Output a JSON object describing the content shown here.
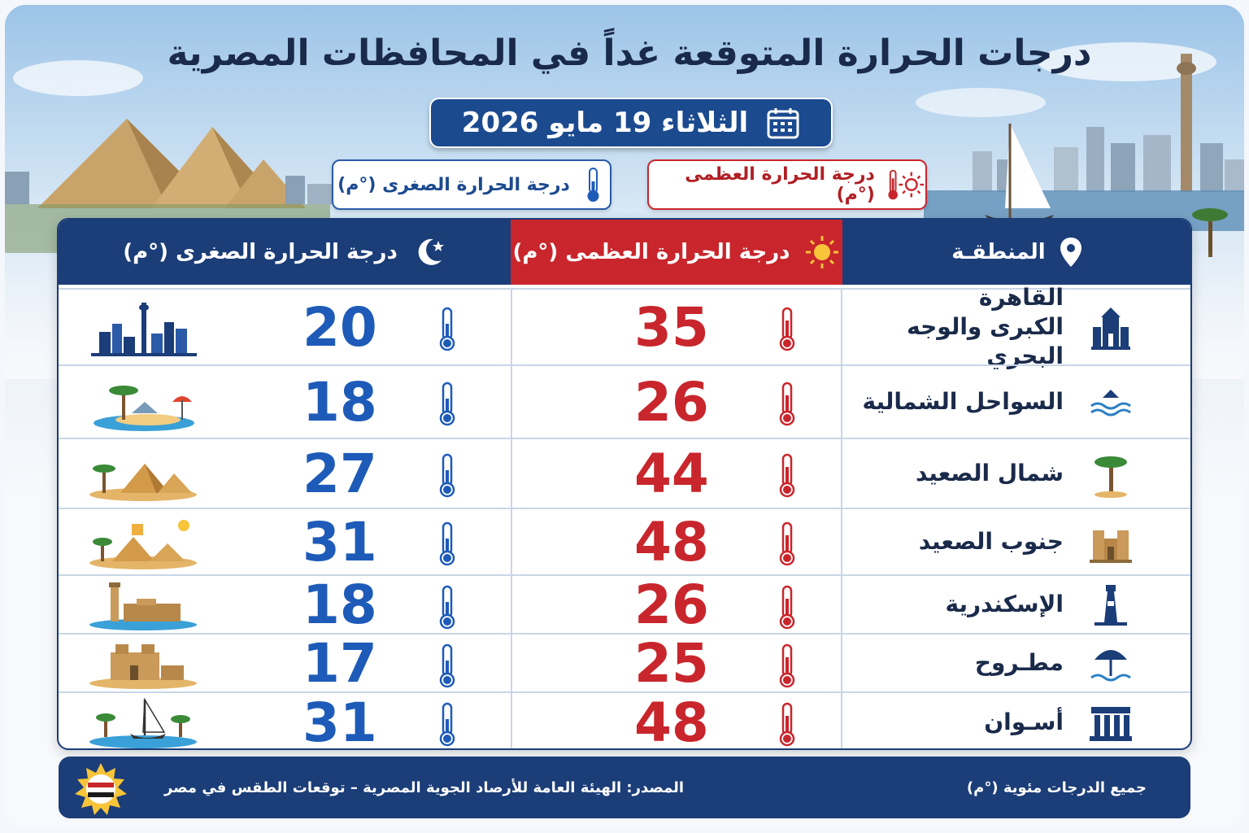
{
  "title": "درجات الحرارة المتوقعة غداً في المحافظات المصرية",
  "date": "الثلاثاء 19 مايو 2026",
  "legend": {
    "max_label": "درجة الحرارة العظمى (°م)",
    "min_label": "درجة الحرارة الصغرى (°م)"
  },
  "table": {
    "header_region": "المنطقـة",
    "header_max": "درجة الحرارة العظمى (°م)",
    "header_min": "درجة الحرارة الصغرى (°م)",
    "rows": [
      {
        "region": "القاهرة الكبرى والوجه البحري",
        "max": "35",
        "min": "20"
      },
      {
        "region": "السواحل الشمالية",
        "max": "26",
        "min": "18"
      },
      {
        "region": "شمال الصعيد",
        "max": "44",
        "min": "27"
      },
      {
        "region": "جنوب الصعيد",
        "max": "48",
        "min": "31"
      },
      {
        "region": "الإسكندرية",
        "max": "26",
        "min": "18"
      },
      {
        "region": "مطـروح",
        "max": "25",
        "min": "17"
      },
      {
        "region": "أسـوان",
        "max": "48",
        "min": "31"
      }
    ]
  },
  "footer": {
    "source": "المصدر: الهيئة العامة للأرصاد الجوية المصرية – توقعات الطقس في مصر",
    "note": "جميع الدرجات مئوية (°م)"
  },
  "colors": {
    "navy": "#1b3d78",
    "red": "#c8262c",
    "blue": "#1e5bb8"
  }
}
